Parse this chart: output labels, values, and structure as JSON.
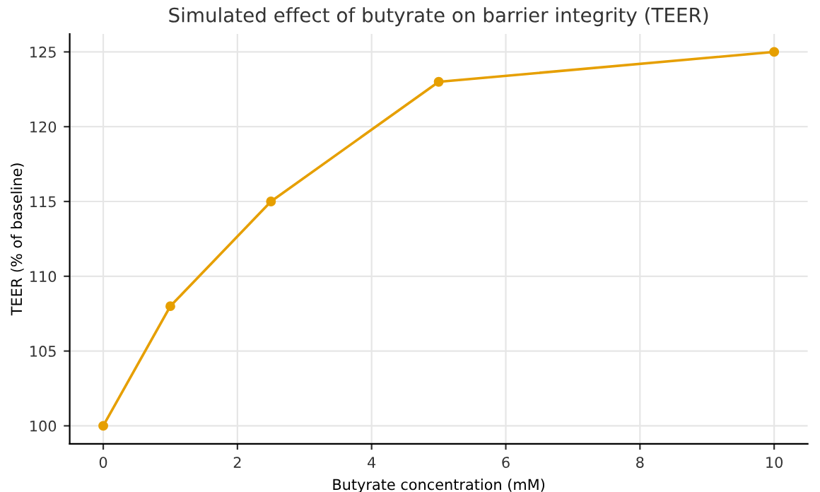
{
  "chart_data": {
    "type": "line",
    "title": "Simulated effect of butyrate on barrier integrity (TEER)",
    "xlabel": "Butyrate concentration (mM)",
    "ylabel": "TEER (% of baseline)",
    "x": [
      0,
      1,
      2.5,
      5,
      10
    ],
    "series": [
      {
        "color": "#e69f00",
        "values": [
          100,
          108,
          115,
          123,
          125
        ]
      }
    ],
    "xlim": [
      -0.5,
      10.5
    ],
    "xticks": [
      0,
      2,
      4,
      6,
      8,
      10
    ],
    "ylim": [
      98.8,
      126.2
    ],
    "yticks": [
      100,
      105,
      110,
      115,
      120,
      125
    ],
    "grid": true,
    "marker": "circle",
    "line_style": "solid"
  }
}
